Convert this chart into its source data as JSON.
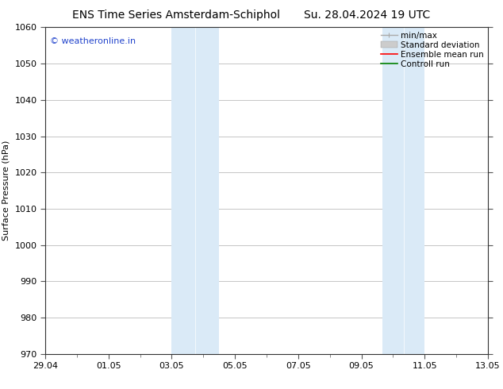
{
  "title_left": "ENS Time Series Amsterdam-Schiphol",
  "title_right": "Su. 28.04.2024 19 UTC",
  "ylabel": "Surface Pressure (hPa)",
  "ylim": [
    970,
    1060
  ],
  "yticks": [
    970,
    980,
    990,
    1000,
    1010,
    1020,
    1030,
    1040,
    1050,
    1060
  ],
  "xtick_labels": [
    "29.04",
    "01.05",
    "03.05",
    "05.05",
    "07.05",
    "09.05",
    "11.05",
    "13.05"
  ],
  "xtick_positions": [
    0,
    2,
    4,
    6,
    8,
    10,
    12,
    14
  ],
  "xlim": [
    0,
    14
  ],
  "shaded_regions": [
    {
      "xstart": 4.0,
      "xend": 4.667
    },
    {
      "xstart": 4.667,
      "xend": 5.333
    },
    {
      "xstart": 10.667,
      "xend": 11.333
    },
    {
      "xstart": 11.333,
      "xend": 12.0
    }
  ],
  "shaded_color": "#daeaf7",
  "watermark_text": "© weatheronline.in",
  "watermark_color": "#2244cc",
  "legend_entries": [
    {
      "label": "min/max",
      "color": "#aaaaaa",
      "lw": 1.0,
      "style": "minmax"
    },
    {
      "label": "Standard deviation",
      "color": "#cccccc",
      "lw": 8,
      "style": "bar"
    },
    {
      "label": "Ensemble mean run",
      "color": "red",
      "lw": 1.2,
      "style": "line"
    },
    {
      "label": "Controll run",
      "color": "green",
      "lw": 1.2,
      "style": "line"
    }
  ],
  "background_color": "#ffffff",
  "grid_color": "#bbbbbb",
  "title_fontsize": 10,
  "axis_fontsize": 8,
  "legend_fontsize": 7.5,
  "watermark_fontsize": 8
}
